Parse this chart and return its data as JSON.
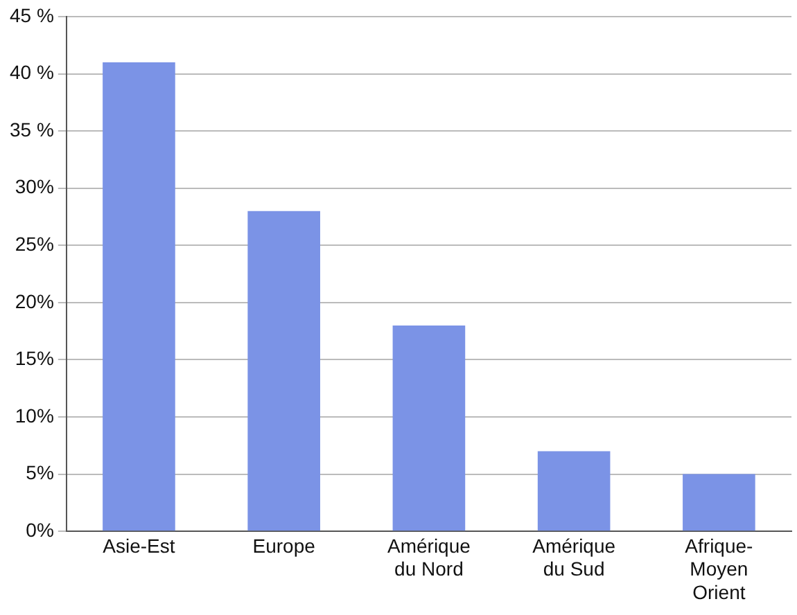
{
  "chart_data": {
    "type": "bar",
    "categories": [
      "Asie-Est",
      "Europe",
      "Amérique\ndu Nord",
      "Amérique\ndu Sud",
      "Afrique-\nMoyen\nOrient"
    ],
    "values": [
      41,
      28,
      18,
      7,
      5
    ],
    "color": "#7b93e6",
    "ylim": [
      0,
      45
    ],
    "yticks": [
      {
        "value": 0,
        "label": "0%"
      },
      {
        "value": 5,
        "label": "5%"
      },
      {
        "value": 10,
        "label": "10%"
      },
      {
        "value": 15,
        "label": "15%"
      },
      {
        "value": 20,
        "label": "20%"
      },
      {
        "value": 25,
        "label": "25%"
      },
      {
        "value": 30,
        "label": "30%"
      },
      {
        "value": 35,
        "label": "35 %"
      },
      {
        "value": 40,
        "label": "40 %"
      },
      {
        "value": 45,
        "label": "45 %"
      }
    ],
    "grid": "y",
    "legend": false
  }
}
